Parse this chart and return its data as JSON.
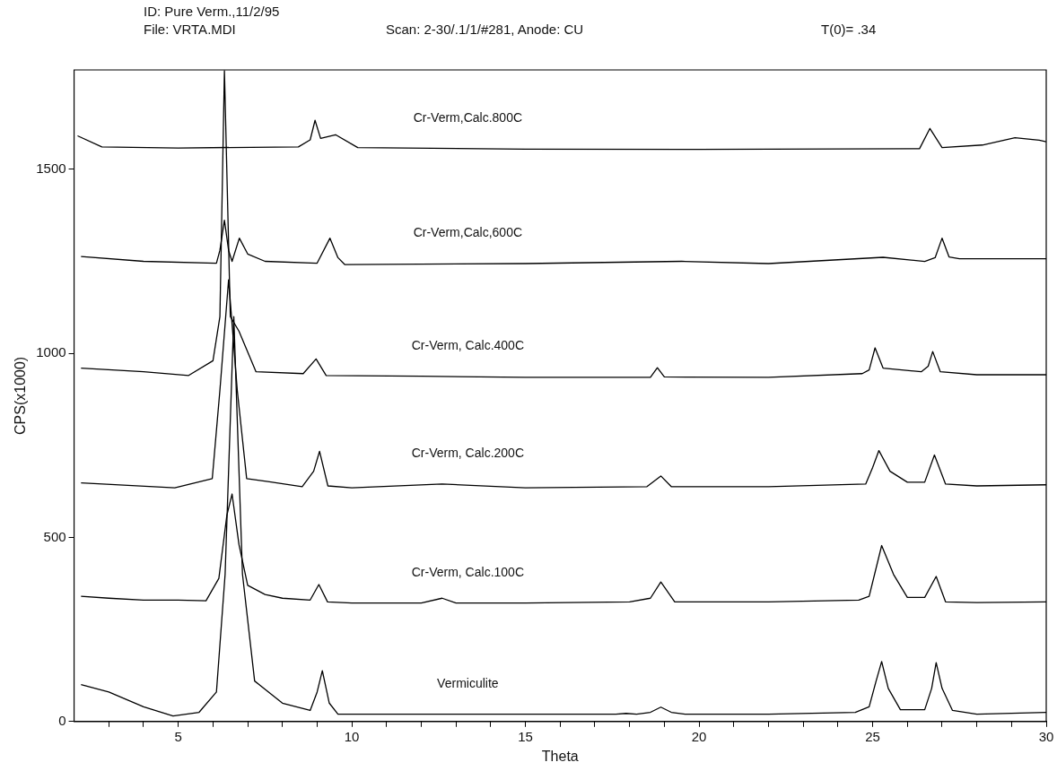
{
  "chart_data": {
    "type": "line",
    "title": "ID: Pure Verm.,11/2/95",
    "annotations": [
      "File: VRTA.MDI",
      "Scan: 2-30/.1/1/#281, Anode: CU",
      "T(0)= .34"
    ],
    "xlabel": "Theta",
    "ylabel": "CPS(x1000)",
    "xlim": [
      2,
      30
    ],
    "xticks": [
      {
        "value": 3,
        "label": null
      },
      {
        "value": 4,
        "label": null
      },
      5,
      {
        "value": 6,
        "label": null
      },
      {
        "value": 7,
        "label": null
      },
      {
        "value": 8,
        "label": null
      },
      {
        "value": 9,
        "label": null
      },
      10,
      {
        "value": 11,
        "label": null
      },
      {
        "value": 12,
        "label": null
      },
      {
        "value": 13,
        "label": null
      },
      {
        "value": 14,
        "label": null
      },
      15,
      {
        "value": 16,
        "label": null
      },
      {
        "value": 17,
        "label": null
      },
      {
        "value": 18,
        "label": null
      },
      {
        "value": 19,
        "label": null
      },
      20,
      {
        "value": 21,
        "label": null
      },
      {
        "value": 22,
        "label": null
      },
      {
        "value": 23,
        "label": null
      },
      {
        "value": 24,
        "label": null
      },
      25,
      {
        "value": 26,
        "label": null
      },
      {
        "value": 27,
        "label": null
      },
      {
        "value": 28,
        "label": null
      },
      {
        "value": 29,
        "label": null
      },
      30
    ],
    "ylim": [
      0,
      1770
    ],
    "yticks": [
      0,
      500,
      1000,
      1500
    ],
    "grid": false,
    "series": [
      {
        "name": "Cr-Verm,Calc.800C",
        "color": "#000000",
        "x": [
          2.1,
          2.8,
          5,
          8.46,
          8.8,
          8.94,
          9.1,
          9.53,
          10.17,
          15,
          20,
          26.35,
          26.65,
          27.0,
          28.16,
          29.1,
          29.8,
          30
        ],
        "values": [
          1591,
          1561,
          1558,
          1561,
          1580,
          1633,
          1584,
          1594,
          1559,
          1555,
          1554,
          1556,
          1611,
          1559,
          1566,
          1586,
          1579,
          1575
        ]
      },
      {
        "name": "Cr-Verm,Calc,600C",
        "color": "#000000",
        "x": [
          2.2,
          4,
          6.1,
          6.2,
          6.33,
          6.45,
          6.55,
          6.76,
          7.0,
          7.5,
          9.0,
          9.37,
          9.6,
          9.8,
          15,
          19.5,
          22,
          25.3,
          26.5,
          26.8,
          27.0,
          27.2,
          27.5,
          30
        ],
        "values": [
          1263,
          1250,
          1245,
          1280,
          1362,
          1280,
          1250,
          1313,
          1270,
          1250,
          1245,
          1313,
          1260,
          1241,
          1244,
          1250,
          1244,
          1261,
          1250,
          1260,
          1313,
          1262,
          1257,
          1257
        ]
      },
      {
        "name": "Cr-Verm, Calc.400C",
        "color": "#000000",
        "x": [
          2.2,
          4,
          5.3,
          6.0,
          6.2,
          6.33,
          6.5,
          6.75,
          7.24,
          8.6,
          8.97,
          9.26,
          12,
          15,
          18.6,
          18.8,
          19.0,
          22,
          24.7,
          24.9,
          25.07,
          25.3,
          26.4,
          26.6,
          26.73,
          26.95,
          28,
          30
        ],
        "values": [
          960,
          950,
          940,
          980,
          1100,
          1768,
          1100,
          1060,
          950,
          945,
          985,
          940,
          938,
          935,
          935,
          961,
          936,
          935,
          945,
          955,
          1015,
          960,
          950,
          965,
          1005,
          950,
          942,
          942
        ]
      },
      {
        "name": "Cr-Verm, Calc.200C",
        "color": "#000000",
        "x": [
          2.2,
          4.9,
          5.98,
          6.2,
          6.45,
          6.7,
          6.97,
          7.58,
          8.57,
          8.9,
          9.07,
          9.31,
          10,
          12.6,
          15,
          18.5,
          18.9,
          19.2,
          22,
          24.8,
          25.0,
          25.18,
          25.5,
          26,
          26.5,
          26.78,
          27.1,
          28,
          30
        ],
        "values": [
          648,
          635,
          660,
          900,
          1200,
          900,
          660,
          652,
          638,
          680,
          734,
          640,
          635,
          645,
          635,
          638,
          667,
          638,
          638,
          645,
          690,
          736,
          680,
          650,
          650,
          724,
          645,
          640,
          643
        ]
      },
      {
        "name": "Cr-Verm, Calc.100C",
        "color": "#000000",
        "x": [
          2.2,
          3,
          4,
          5,
          5.8,
          6.17,
          6.4,
          6.55,
          6.75,
          7.0,
          7.5,
          8,
          8.8,
          9.05,
          9.3,
          10,
          12,
          12.6,
          13,
          15,
          18,
          18.6,
          18.9,
          19.3,
          22,
          24.6,
          24.9,
          25.26,
          25.6,
          26,
          26.5,
          26.83,
          27.1,
          28,
          30
        ],
        "values": [
          340,
          335,
          330,
          330,
          328,
          389,
          560,
          618,
          480,
          370,
          345,
          335,
          330,
          372,
          325,
          322,
          322,
          335,
          322,
          322,
          325,
          335,
          379,
          325,
          325,
          330,
          340,
          478,
          400,
          337,
          337,
          394,
          325,
          323,
          325
        ]
      },
      {
        "name": "Vermiculite",
        "color": "#000000",
        "x": [
          2.2,
          3,
          4,
          4.85,
          5.6,
          6.1,
          6.35,
          6.6,
          6.85,
          7.2,
          8,
          8.8,
          9.0,
          9.15,
          9.35,
          9.6,
          12,
          15,
          17.6,
          17.9,
          18.2,
          18.6,
          18.9,
          19.2,
          19.6,
          22,
          24.5,
          24.9,
          25.1,
          25.26,
          25.45,
          25.8,
          26.5,
          26.7,
          26.83,
          27.0,
          27.3,
          28,
          30
        ],
        "values": [
          100,
          80,
          40,
          15,
          25,
          80,
          400,
          1100,
          400,
          110,
          50,
          30,
          80,
          138,
          50,
          20,
          20,
          20,
          20,
          22,
          20,
          25,
          39,
          25,
          20,
          20,
          25,
          40,
          110,
          163,
          90,
          32,
          32,
          90,
          160,
          90,
          30,
          20,
          25
        ]
      }
    ]
  }
}
